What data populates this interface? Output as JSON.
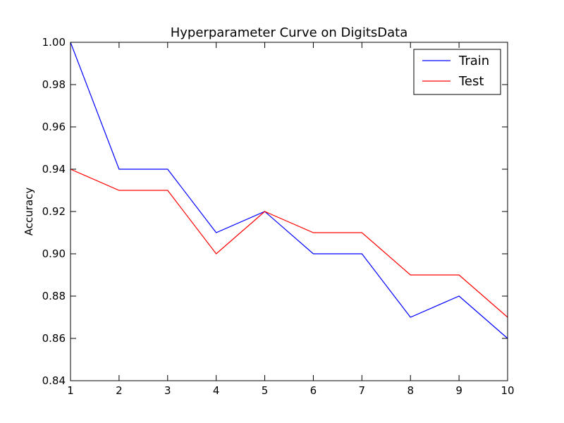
{
  "chart_data": {
    "type": "line",
    "title": "Hyperparameter Curve on DigitsData",
    "xlabel": "",
    "ylabel": "Accuracy",
    "x": [
      1,
      2,
      3,
      4,
      5,
      6,
      7,
      8,
      9,
      10
    ],
    "xlim": [
      1,
      10
    ],
    "ylim": [
      0.84,
      1.0
    ],
    "xticks": [
      "1",
      "2",
      "3",
      "4",
      "5",
      "6",
      "7",
      "8",
      "9",
      "10"
    ],
    "yticks": [
      "0.84",
      "0.86",
      "0.88",
      "0.90",
      "0.92",
      "0.94",
      "0.96",
      "0.98",
      "1.00"
    ],
    "grid": false,
    "legend_position": "top-right",
    "series": [
      {
        "name": "Train",
        "color": "#0000ff",
        "values": [
          1.0,
          0.94,
          0.94,
          0.91,
          0.92,
          0.9,
          0.9,
          0.87,
          0.88,
          0.86
        ]
      },
      {
        "name": "Test",
        "color": "#ff0000",
        "values": [
          0.94,
          0.93,
          0.93,
          0.9,
          0.92,
          0.91,
          0.91,
          0.89,
          0.89,
          0.87
        ]
      }
    ]
  }
}
